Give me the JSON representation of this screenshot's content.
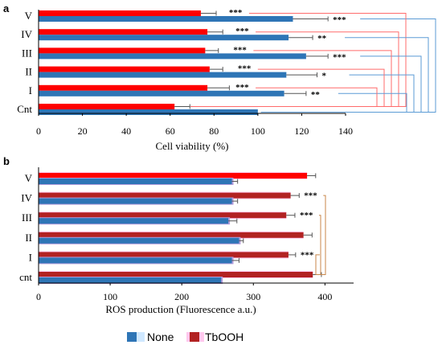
{
  "chart_data": [
    {
      "panel": "a",
      "type": "bar",
      "orientation": "horizontal",
      "categories": [
        "V",
        "IV",
        "III",
        "II",
        "I",
        "Cnt"
      ],
      "series": [
        {
          "name": "TbOOH",
          "color": "#ff0000",
          "values": [
            74,
            77,
            76,
            78,
            77,
            62
          ],
          "errors": [
            7,
            7,
            6,
            6,
            10,
            7
          ]
        },
        {
          "name": "None",
          "color": "#2e75b6",
          "values": [
            116,
            114,
            122,
            113,
            112,
            100
          ],
          "errors": [
            16,
            11,
            10,
            14,
            10,
            0
          ]
        }
      ],
      "significance": [
        "***",
        "**",
        "***",
        "*",
        "**",
        ""
      ],
      "significance_tbooh": [
        "***",
        "***",
        "***",
        "***",
        "***",
        ""
      ],
      "xlabel": "Cell viability (%)",
      "xlim": [
        0,
        140
      ],
      "xticks": [
        0,
        20,
        40,
        60,
        80,
        100,
        120,
        140
      ],
      "brackets": {
        "blue": "#5b9bd5",
        "red": "#ff6b6b"
      }
    },
    {
      "panel": "b",
      "type": "bar",
      "orientation": "horizontal",
      "categories": [
        "V",
        "IV",
        "III",
        "II",
        "I",
        "cnt"
      ],
      "series": [
        {
          "name": "TbOOH",
          "color": "#ff0000",
          "values": [
            375,
            352,
            346,
            370,
            349,
            383
          ],
          "errors": [
            12,
            12,
            12,
            12,
            10,
            12
          ]
        },
        {
          "name": "TbOOH",
          "color": "#b22222",
          "values": [
            375,
            352,
            346,
            370,
            349,
            383
          ],
          "errors": [
            12,
            12,
            12,
            12,
            10,
            12
          ]
        },
        {
          "name": "None",
          "color": "#2e75b6",
          "values": [
            270,
            270,
            265,
            280,
            270,
            255
          ],
          "errors": [
            8,
            8,
            12,
            6,
            10,
            0
          ]
        }
      ],
      "significance": [
        "",
        "***",
        "***",
        "",
        "***",
        ""
      ],
      "xlabel": "ROS production (Fluorescence a.u.)",
      "xlim": [
        0,
        440
      ],
      "xticks": [
        0,
        100,
        200,
        300,
        400
      ],
      "bracket_color": "#c8864a"
    }
  ],
  "legend": [
    {
      "label": "None",
      "color": "#2e75b6",
      "bg": "#cfe8ff"
    },
    {
      "label": "TbOOH",
      "color": "#b22222",
      "bg": "#ffc8ee"
    }
  ]
}
